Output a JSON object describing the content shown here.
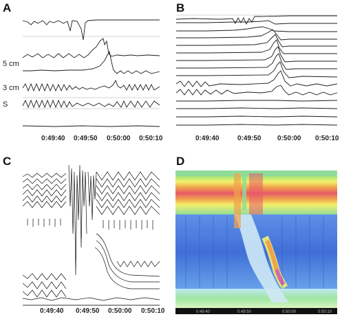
{
  "figure": {
    "panels": [
      {
        "letter": "A",
        "side_labels": [
          "5 cm",
          "3 cm",
          "S"
        ],
        "time_ticks": [
          "0:49:40",
          "0:49:50",
          "0:50:00",
          "0:50:10"
        ]
      },
      {
        "letter": "B",
        "time_ticks": [
          "0:49:40",
          "0:49:50",
          "0:50:00",
          "0:50:10"
        ]
      },
      {
        "letter": "C",
        "time_ticks": [
          "0:49:40",
          "0:49:50",
          "0:50:00",
          "0:50:10"
        ]
      },
      {
        "letter": "D",
        "time_ticks": [
          "0:49:40",
          "0:49:50",
          "0:50:00",
          "0:50:10"
        ]
      }
    ]
  }
}
